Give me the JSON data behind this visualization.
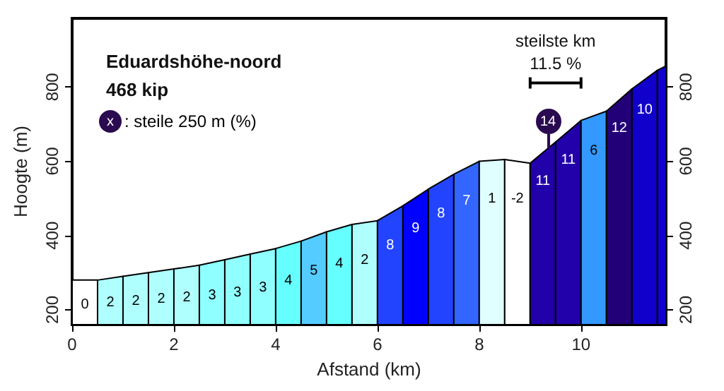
{
  "chart_data": {
    "type": "area",
    "title": "Eduardshöhe-noord",
    "subtitle": "468 kip",
    "xlabel": "Afstand (km)",
    "ylabel": "Hoogte (m)",
    "xlim": [
      0,
      11.67
    ],
    "xticks": [
      0,
      2,
      4,
      6,
      8,
      10
    ],
    "ylim": [
      160,
      985
    ],
    "yticks": [
      200,
      400,
      600,
      800
    ],
    "y2lim": [
      160,
      985
    ],
    "y2ticks": [
      200,
      400,
      600,
      800
    ],
    "grid": false,
    "legend": false,
    "series": [
      {
        "name": "0",
        "color": "#ffffff",
        "x": [
          0,
          0.5
        ],
        "values": [
          280,
          280
        ]
      },
      {
        "name": "2",
        "color": "#b0ffff",
        "x": [
          0.5,
          1
        ],
        "values": [
          280,
          290
        ]
      },
      {
        "name": "2",
        "color": "#b0ffff",
        "x": [
          1,
          1.5
        ],
        "values": [
          290,
          300
        ]
      },
      {
        "name": "2",
        "color": "#b0ffff",
        "x": [
          1.5,
          2
        ],
        "values": [
          300,
          310
        ]
      },
      {
        "name": "2",
        "color": "#b0ffff",
        "x": [
          2,
          2.5
        ],
        "values": [
          310,
          320
        ]
      },
      {
        "name": "3",
        "color": "#90ffff",
        "x": [
          2.5,
          3
        ],
        "values": [
          320,
          335
        ]
      },
      {
        "name": "3",
        "color": "#90ffff",
        "x": [
          3,
          3.5
        ],
        "values": [
          335,
          350
        ]
      },
      {
        "name": "3",
        "color": "#90ffff",
        "x": [
          3.5,
          4
        ],
        "values": [
          350,
          365
        ]
      },
      {
        "name": "4",
        "color": "#66ffff",
        "x": [
          4,
          4.5
        ],
        "values": [
          365,
          385
        ]
      },
      {
        "name": "5",
        "color": "#55ccff",
        "x": [
          4.5,
          5
        ],
        "values": [
          385,
          410
        ]
      },
      {
        "name": "4",
        "color": "#66ffff",
        "x": [
          5,
          5.5
        ],
        "values": [
          410,
          430
        ]
      },
      {
        "name": "2",
        "color": "#b0ffff",
        "x": [
          5.5,
          6
        ],
        "values": [
          430,
          440
        ]
      },
      {
        "name": "8",
        "color": "#2244ff",
        "x": [
          6,
          6.5
        ],
        "values": [
          440,
          480
        ]
      },
      {
        "name": "9",
        "color": "#0000ff",
        "x": [
          6.5,
          7
        ],
        "values": [
          480,
          525
        ]
      },
      {
        "name": "8",
        "color": "#2244ff",
        "x": [
          7,
          7.5
        ],
        "values": [
          525,
          565
        ]
      },
      {
        "name": "7",
        "color": "#3366ff",
        "x": [
          7.5,
          8
        ],
        "values": [
          565,
          600
        ]
      },
      {
        "name": "1",
        "color": "#e0ffff",
        "x": [
          8,
          8.5
        ],
        "values": [
          600,
          605
        ]
      },
      {
        "name": "-2",
        "color": "#ffffff",
        "x": [
          8.5,
          9
        ],
        "values": [
          605,
          595
        ]
      },
      {
        "name": "11",
        "color": "#2200aa",
        "x": [
          9,
          9.5
        ],
        "values": [
          595,
          652
        ]
      },
      {
        "name": "11",
        "color": "#2200aa",
        "x": [
          9.5,
          10
        ],
        "values": [
          652,
          710
        ]
      },
      {
        "name": "6",
        "color": "#3399ff",
        "x": [
          10,
          10.5
        ],
        "values": [
          710,
          735
        ]
      },
      {
        "name": "12",
        "color": "#220077",
        "x": [
          10.5,
          11
        ],
        "values": [
          735,
          795
        ]
      },
      {
        "name": "10",
        "color": "#1100cc",
        "x": [
          11,
          11.5
        ],
        "values": [
          795,
          845
        ]
      },
      {
        "color": "#1100cc",
        "x": [
          11.5,
          11.67
        ],
        "values": [
          845,
          857
        ]
      }
    ],
    "annotations": [
      "x",
      ": steile 250 m (%)",
      "steilste km",
      "14",
      "11.5 %"
    ]
  }
}
